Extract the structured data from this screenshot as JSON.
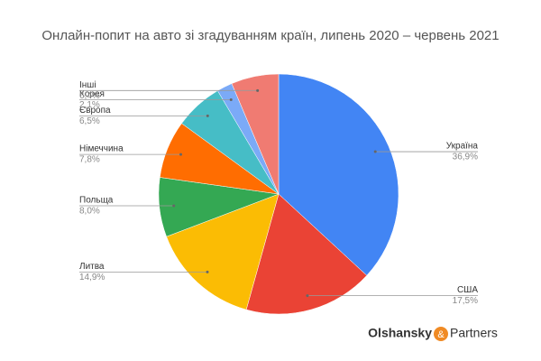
{
  "chart_data": {
    "type": "pie",
    "title": "Онлайн-попит на авто зі згадуванням країн, липень 2020 – червень 2021",
    "categories": [
      "Україна",
      "США",
      "Литва",
      "Польща",
      "Німеччина",
      "Європа",
      "Корея",
      "Інші"
    ],
    "values": [
      36.9,
      17.5,
      14.9,
      8.0,
      7.8,
      6.5,
      2.1,
      6.4
    ],
    "value_labels": [
      "36,9%",
      "17,5%",
      "14,9%",
      "8,0%",
      "7,8%",
      "6,5%",
      "2,1%",
      "6,4%"
    ],
    "colors": [
      "#4285f4",
      "#ea4335",
      "#fbbc04",
      "#34a853",
      "#ff6d01",
      "#46bdc6",
      "#7baaf7",
      "#f07b72"
    ]
  },
  "logo": {
    "left": "Olshansky",
    "mark": "&",
    "right": "Partners"
  }
}
